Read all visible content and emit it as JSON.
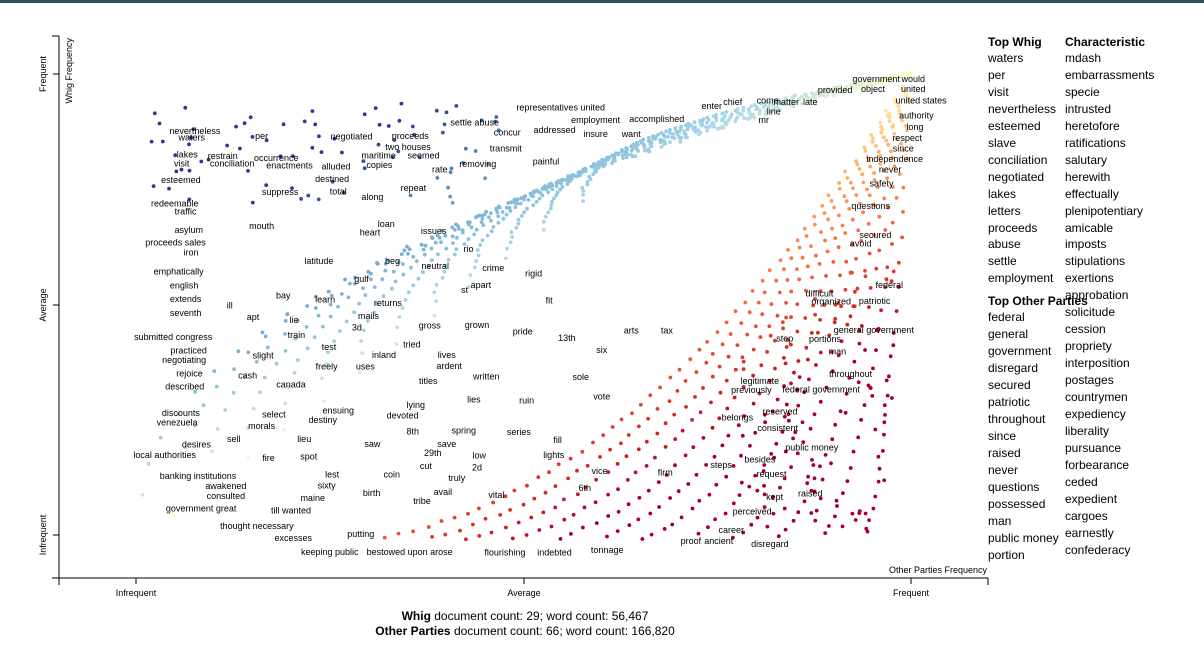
{
  "chart_data": {
    "type": "scatter",
    "xlabel": "Other Parties Frequency",
    "ylabel": "Whig Frequency",
    "x_ticks": [
      "Infrequent",
      "Average",
      "Frequent"
    ],
    "y_ticks": [
      "Frequent",
      "Average",
      "Infrequent"
    ],
    "xlim": [
      0,
      1
    ],
    "ylim": [
      0,
      1
    ],
    "color_scale": [
      "#313695",
      "#4575b4",
      "#74add1",
      "#abd9e9",
      "#ffffbf",
      "#fdae61",
      "#f46d43",
      "#d73027",
      "#a50026"
    ],
    "labels": [
      {
        "t": "nevertheless",
        "x": 0.076,
        "y": 0.876
      },
      {
        "t": "per",
        "x": 0.162,
        "y": 0.866
      },
      {
        "t": "waters",
        "x": 0.072,
        "y": 0.862
      },
      {
        "t": "lakes",
        "x": 0.066,
        "y": 0.825
      },
      {
        "t": "restrain",
        "x": 0.112,
        "y": 0.822
      },
      {
        "t": "occurrence",
        "x": 0.181,
        "y": 0.818
      },
      {
        "t": "visit",
        "x": 0.059,
        "y": 0.806
      },
      {
        "t": "conciliation",
        "x": 0.124,
        "y": 0.806
      },
      {
        "t": "enactments",
        "x": 0.198,
        "y": 0.801
      },
      {
        "t": "alluded",
        "x": 0.258,
        "y": 0.799
      },
      {
        "t": "copies",
        "x": 0.314,
        "y": 0.803
      },
      {
        "t": "seemed",
        "x": 0.371,
        "y": 0.823
      },
      {
        "t": "maritime",
        "x": 0.313,
        "y": 0.823
      },
      {
        "t": "negotiated",
        "x": 0.278,
        "y": 0.864
      },
      {
        "t": "proceeds",
        "x": 0.354,
        "y": 0.865
      },
      {
        "t": "two houses",
        "x": 0.351,
        "y": 0.842
      },
      {
        "t": "rate",
        "x": 0.392,
        "y": 0.793
      },
      {
        "t": "settle abuse",
        "x": 0.437,
        "y": 0.895
      },
      {
        "t": "concur",
        "x": 0.479,
        "y": 0.873
      },
      {
        "t": "transmit",
        "x": 0.477,
        "y": 0.838
      },
      {
        "t": "removing",
        "x": 0.441,
        "y": 0.805
      },
      {
        "t": "addressed",
        "x": 0.54,
        "y": 0.878
      },
      {
        "t": "insure",
        "x": 0.593,
        "y": 0.87
      },
      {
        "t": "want",
        "x": 0.639,
        "y": 0.87
      },
      {
        "t": "employment",
        "x": 0.593,
        "y": 0.9
      },
      {
        "t": "representatives united",
        "x": 0.548,
        "y": 0.927
      },
      {
        "t": "painful",
        "x": 0.529,
        "y": 0.81
      },
      {
        "t": "accomplished",
        "x": 0.672,
        "y": 0.902
      },
      {
        "t": "enter",
        "x": 0.743,
        "y": 0.931
      },
      {
        "t": "chief",
        "x": 0.77,
        "y": 0.939
      },
      {
        "t": "come",
        "x": 0.815,
        "y": 0.942
      },
      {
        "t": "matter",
        "x": 0.839,
        "y": 0.939
      },
      {
        "t": "late",
        "x": 0.87,
        "y": 0.939
      },
      {
        "t": "line",
        "x": 0.823,
        "y": 0.919
      },
      {
        "t": "mr",
        "x": 0.81,
        "y": 0.9
      },
      {
        "t": "provided",
        "x": 0.902,
        "y": 0.965
      },
      {
        "t": "object",
        "x": 0.951,
        "y": 0.967
      },
      {
        "t": "government",
        "x": 0.955,
        "y": 0.989
      },
      {
        "t": "would",
        "x": 1.003,
        "y": 0.989
      },
      {
        "t": "united",
        "x": 1.003,
        "y": 0.967
      },
      {
        "t": "united states",
        "x": 1.013,
        "y": 0.943
      },
      {
        "t": "authority",
        "x": 1.007,
        "y": 0.91
      },
      {
        "t": "long",
        "x": 1.005,
        "y": 0.885
      },
      {
        "t": "respect",
        "x": 0.995,
        "y": 0.861
      },
      {
        "t": "since",
        "x": 0.99,
        "y": 0.838
      },
      {
        "t": "independence",
        "x": 0.979,
        "y": 0.816
      },
      {
        "t": "never",
        "x": 0.973,
        "y": 0.793
      },
      {
        "t": "safety",
        "x": 0.962,
        "y": 0.763
      },
      {
        "t": "questions",
        "x": 0.948,
        "y": 0.714
      },
      {
        "t": "secured",
        "x": 0.954,
        "y": 0.651
      },
      {
        "t": "avoid",
        "x": 0.935,
        "y": 0.632
      },
      {
        "t": "esteemed",
        "x": 0.058,
        "y": 0.77
      },
      {
        "t": "suppress",
        "x": 0.186,
        "y": 0.744
      },
      {
        "t": "destined",
        "x": 0.253,
        "y": 0.772
      },
      {
        "t": "total",
        "x": 0.261,
        "y": 0.745
      },
      {
        "t": "along",
        "x": 0.305,
        "y": 0.733
      },
      {
        "t": "repeat",
        "x": 0.358,
        "y": 0.753
      },
      {
        "t": "redeemable",
        "x": 0.05,
        "y": 0.719
      },
      {
        "t": "traffic",
        "x": 0.064,
        "y": 0.702
      },
      {
        "t": "mouth",
        "x": 0.162,
        "y": 0.67
      },
      {
        "t": "loan",
        "x": 0.323,
        "y": 0.675
      },
      {
        "t": "heart",
        "x": 0.302,
        "y": 0.656
      },
      {
        "t": "issues",
        "x": 0.384,
        "y": 0.659
      },
      {
        "t": "asylum",
        "x": 0.068,
        "y": 0.662
      },
      {
        "t": "proceeds sales",
        "x": 0.051,
        "y": 0.634
      },
      {
        "t": "iron",
        "x": 0.071,
        "y": 0.613
      },
      {
        "t": "latitude",
        "x": 0.236,
        "y": 0.594
      },
      {
        "t": "beg",
        "x": 0.331,
        "y": 0.594
      },
      {
        "t": "neutral",
        "x": 0.386,
        "y": 0.584
      },
      {
        "t": "rio",
        "x": 0.429,
        "y": 0.62
      },
      {
        "t": "crime",
        "x": 0.461,
        "y": 0.579
      },
      {
        "t": "rigid",
        "x": 0.513,
        "y": 0.567
      },
      {
        "t": "emphatically",
        "x": 0.055,
        "y": 0.572
      },
      {
        "t": "gulf",
        "x": 0.291,
        "y": 0.555
      },
      {
        "t": "apart",
        "x": 0.445,
        "y": 0.542
      },
      {
        "t": "st",
        "x": 0.424,
        "y": 0.531
      },
      {
        "t": "english",
        "x": 0.062,
        "y": 0.541
      },
      {
        "t": "extends",
        "x": 0.064,
        "y": 0.512
      },
      {
        "t": "bay",
        "x": 0.19,
        "y": 0.519
      },
      {
        "t": "learn",
        "x": 0.244,
        "y": 0.511
      },
      {
        "t": "returns",
        "x": 0.325,
        "y": 0.503
      },
      {
        "t": "fit",
        "x": 0.533,
        "y": 0.509
      },
      {
        "t": "ill",
        "x": 0.121,
        "y": 0.498
      },
      {
        "t": "seventh",
        "x": 0.064,
        "y": 0.482
      },
      {
        "t": "apt",
        "x": 0.151,
        "y": 0.473
      },
      {
        "t": "lie",
        "x": 0.204,
        "y": 0.466
      },
      {
        "t": "mails",
        "x": 0.3,
        "y": 0.475
      },
      {
        "t": "3d",
        "x": 0.285,
        "y": 0.45
      },
      {
        "t": "gross",
        "x": 0.379,
        "y": 0.454
      },
      {
        "t": "grown",
        "x": 0.44,
        "y": 0.456
      },
      {
        "t": "pride",
        "x": 0.499,
        "y": 0.441
      },
      {
        "t": "13th",
        "x": 0.556,
        "y": 0.427
      },
      {
        "t": "arts",
        "x": 0.639,
        "y": 0.444
      },
      {
        "t": "tax",
        "x": 0.685,
        "y": 0.444
      },
      {
        "t": "submitted congress",
        "x": 0.048,
        "y": 0.43
      },
      {
        "t": "train",
        "x": 0.207,
        "y": 0.434
      },
      {
        "t": "test",
        "x": 0.249,
        "y": 0.408
      },
      {
        "t": "tried",
        "x": 0.356,
        "y": 0.413
      },
      {
        "t": "six",
        "x": 0.601,
        "y": 0.401
      },
      {
        "t": "practiced",
        "x": 0.068,
        "y": 0.4
      },
      {
        "t": "negotiating",
        "x": 0.062,
        "y": 0.38
      },
      {
        "t": "slight",
        "x": 0.164,
        "y": 0.389
      },
      {
        "t": "inland",
        "x": 0.32,
        "y": 0.39
      },
      {
        "t": "lives",
        "x": 0.401,
        "y": 0.39
      },
      {
        "t": "ardent",
        "x": 0.404,
        "y": 0.367
      },
      {
        "t": "uses",
        "x": 0.296,
        "y": 0.365
      },
      {
        "t": "freely",
        "x": 0.246,
        "y": 0.365
      },
      {
        "t": "rejoice",
        "x": 0.069,
        "y": 0.35
      },
      {
        "t": "cash",
        "x": 0.144,
        "y": 0.346
      },
      {
        "t": "written",
        "x": 0.452,
        "y": 0.344
      },
      {
        "t": "sole",
        "x": 0.574,
        "y": 0.343
      },
      {
        "t": "titles",
        "x": 0.377,
        "y": 0.334
      },
      {
        "t": "canada",
        "x": 0.2,
        "y": 0.327
      },
      {
        "t": "described",
        "x": 0.063,
        "y": 0.322
      },
      {
        "t": "lies",
        "x": 0.436,
        "y": 0.294
      },
      {
        "t": "ruin",
        "x": 0.504,
        "y": 0.292
      },
      {
        "t": "vote",
        "x": 0.601,
        "y": 0.3
      },
      {
        "t": "lying",
        "x": 0.361,
        "y": 0.282
      },
      {
        "t": "ensuing",
        "x": 0.261,
        "y": 0.27
      },
      {
        "t": "devoted",
        "x": 0.344,
        "y": 0.259
      },
      {
        "t": "discounts",
        "x": 0.058,
        "y": 0.265
      },
      {
        "t": "select",
        "x": 0.178,
        "y": 0.261
      },
      {
        "t": "destiny",
        "x": 0.241,
        "y": 0.25
      },
      {
        "t": "venezuela",
        "x": 0.053,
        "y": 0.244
      },
      {
        "t": "morals",
        "x": 0.162,
        "y": 0.236
      },
      {
        "t": "8th",
        "x": 0.357,
        "y": 0.225
      },
      {
        "t": "spring",
        "x": 0.423,
        "y": 0.227
      },
      {
        "t": "series",
        "x": 0.494,
        "y": 0.223
      },
      {
        "t": "lieu",
        "x": 0.217,
        "y": 0.208
      },
      {
        "t": "sell",
        "x": 0.126,
        "y": 0.208
      },
      {
        "t": "save",
        "x": 0.401,
        "y": 0.197
      },
      {
        "t": "saw",
        "x": 0.305,
        "y": 0.197
      },
      {
        "t": "fill",
        "x": 0.544,
        "y": 0.206
      },
      {
        "t": "desires",
        "x": 0.078,
        "y": 0.196
      },
      {
        "t": "29th",
        "x": 0.383,
        "y": 0.178
      },
      {
        "t": "local authorities",
        "x": 0.037,
        "y": 0.174
      },
      {
        "t": "fire",
        "x": 0.171,
        "y": 0.167
      },
      {
        "t": "spot",
        "x": 0.223,
        "y": 0.17
      },
      {
        "t": "low",
        "x": 0.443,
        "y": 0.172
      },
      {
        "t": "lights",
        "x": 0.539,
        "y": 0.173
      },
      {
        "t": "cut",
        "x": 0.374,
        "y": 0.15
      },
      {
        "t": "2d",
        "x": 0.44,
        "y": 0.146
      },
      {
        "t": "truly",
        "x": 0.414,
        "y": 0.124
      },
      {
        "t": "vice",
        "x": 0.598,
        "y": 0.139
      },
      {
        "t": "firm",
        "x": 0.683,
        "y": 0.136
      },
      {
        "t": "lest",
        "x": 0.253,
        "y": 0.131
      },
      {
        "t": "coin",
        "x": 0.33,
        "y": 0.131
      },
      {
        "t": "banking institutions",
        "x": 0.08,
        "y": 0.128
      },
      {
        "t": "sixty",
        "x": 0.246,
        "y": 0.107
      },
      {
        "t": "6th",
        "x": 0.579,
        "y": 0.102
      },
      {
        "t": "awakened",
        "x": 0.116,
        "y": 0.106
      },
      {
        "t": "avail",
        "x": 0.396,
        "y": 0.093
      },
      {
        "t": "birth",
        "x": 0.304,
        "y": 0.091
      },
      {
        "t": "vital",
        "x": 0.465,
        "y": 0.087
      },
      {
        "t": "maine",
        "x": 0.228,
        "y": 0.08
      },
      {
        "t": "tribe",
        "x": 0.369,
        "y": 0.074
      },
      {
        "t": "consulted",
        "x": 0.116,
        "y": 0.085
      },
      {
        "t": "government great",
        "x": 0.084,
        "y": 0.057
      },
      {
        "t": "till wanted",
        "x": 0.2,
        "y": 0.053
      },
      {
        "t": "thought necessary",
        "x": 0.156,
        "y": 0.019
      },
      {
        "t": "excesses",
        "x": 0.203,
        "y": -0.007
      },
      {
        "t": "putting",
        "x": 0.29,
        "y": 0.002
      },
      {
        "t": "keeping public",
        "x": 0.25,
        "y": -0.037
      },
      {
        "t": "bestowed upon arose",
        "x": 0.353,
        "y": -0.037
      },
      {
        "t": "flourishing",
        "x": 0.476,
        "y": -0.038
      },
      {
        "t": "indebted",
        "x": 0.54,
        "y": -0.038
      },
      {
        "t": "tonnage",
        "x": 0.608,
        "y": -0.033
      },
      {
        "t": "proof",
        "x": 0.716,
        "y": -0.013
      },
      {
        "t": "ancient",
        "x": 0.752,
        "y": -0.013
      },
      {
        "t": "career",
        "x": 0.768,
        "y": 0.011
      },
      {
        "t": "disregard",
        "x": 0.818,
        "y": -0.02
      },
      {
        "t": "perceived",
        "x": 0.795,
        "y": 0.051
      },
      {
        "t": "kept",
        "x": 0.824,
        "y": 0.082
      },
      {
        "t": "raised",
        "x": 0.87,
        "y": 0.09
      },
      {
        "t": "request",
        "x": 0.82,
        "y": 0.132
      },
      {
        "t": "steps",
        "x": 0.755,
        "y": 0.152
      },
      {
        "t": "besides",
        "x": 0.805,
        "y": 0.164
      },
      {
        "t": "public money",
        "x": 0.872,
        "y": 0.19
      },
      {
        "t": "consistent",
        "x": 0.828,
        "y": 0.232
      },
      {
        "t": "belongs",
        "x": 0.776,
        "y": 0.255
      },
      {
        "t": "reserved",
        "x": 0.831,
        "y": 0.268
      },
      {
        "t": "previously",
        "x": 0.794,
        "y": 0.315
      },
      {
        "t": "legitimate",
        "x": 0.805,
        "y": 0.334
      },
      {
        "t": "federal government",
        "x": 0.884,
        "y": 0.316
      },
      {
        "t": "throughout",
        "x": 0.922,
        "y": 0.349
      },
      {
        "t": "man",
        "x": 0.905,
        "y": 0.398
      },
      {
        "t": "step",
        "x": 0.837,
        "y": 0.426
      },
      {
        "t": "portions",
        "x": 0.889,
        "y": 0.425
      },
      {
        "t": "general government",
        "x": 0.952,
        "y": 0.445
      },
      {
        "t": "organized",
        "x": 0.897,
        "y": 0.506
      },
      {
        "t": "patriotic",
        "x": 0.953,
        "y": 0.508
      },
      {
        "t": "difficult",
        "x": 0.882,
        "y": 0.524
      },
      {
        "t": "federal",
        "x": 0.972,
        "y": 0.542
      }
    ]
  },
  "axes": {
    "x_title": "Other Parties Frequency",
    "y_title": "Whig Frequency",
    "x_ticks": [
      "Infrequent",
      "Average",
      "Frequent"
    ],
    "y_ticks": [
      "Frequent",
      "Average",
      "Infrequent"
    ]
  },
  "sidebar": {
    "top_whig_title": "Top Whig",
    "top_whig": [
      "waters",
      "per",
      "visit",
      "nevertheless",
      "esteemed",
      "slave",
      "conciliation",
      "negotiated",
      "lakes",
      "letters",
      "proceeds",
      "abuse",
      "settle",
      "employment"
    ],
    "top_other_title": "Top Other Parties",
    "top_other": [
      "federal",
      "general government",
      "disregard",
      "secured",
      "patriotic",
      "throughout",
      "since",
      "raised",
      "never",
      "questions",
      "possessed",
      "man",
      "public money",
      "portion"
    ],
    "characteristic_title": "Characteristic",
    "characteristic": [
      "mdash",
      "embarrassments",
      "specie",
      "intrusted",
      "heretofore",
      "ratifications",
      "salutary",
      "herewith",
      "effectually",
      "plenipotentiary",
      "amicable",
      "imposts",
      "stipulations",
      "exertions",
      "approbation",
      "solicitude",
      "cession",
      "propriety",
      "interposition",
      "postages",
      "countrymen",
      "expediency",
      "liberality",
      "pursuance",
      "forbearance",
      "ceded",
      "expedient",
      "cargoes",
      "earnestly",
      "confederacy"
    ]
  },
  "footer": {
    "whig_name": "Whig",
    "whig_stats": " document count: 29; word count: 56,467",
    "other_name": "Other Parties",
    "other_stats": " document count: 66; word count: 166,820"
  }
}
